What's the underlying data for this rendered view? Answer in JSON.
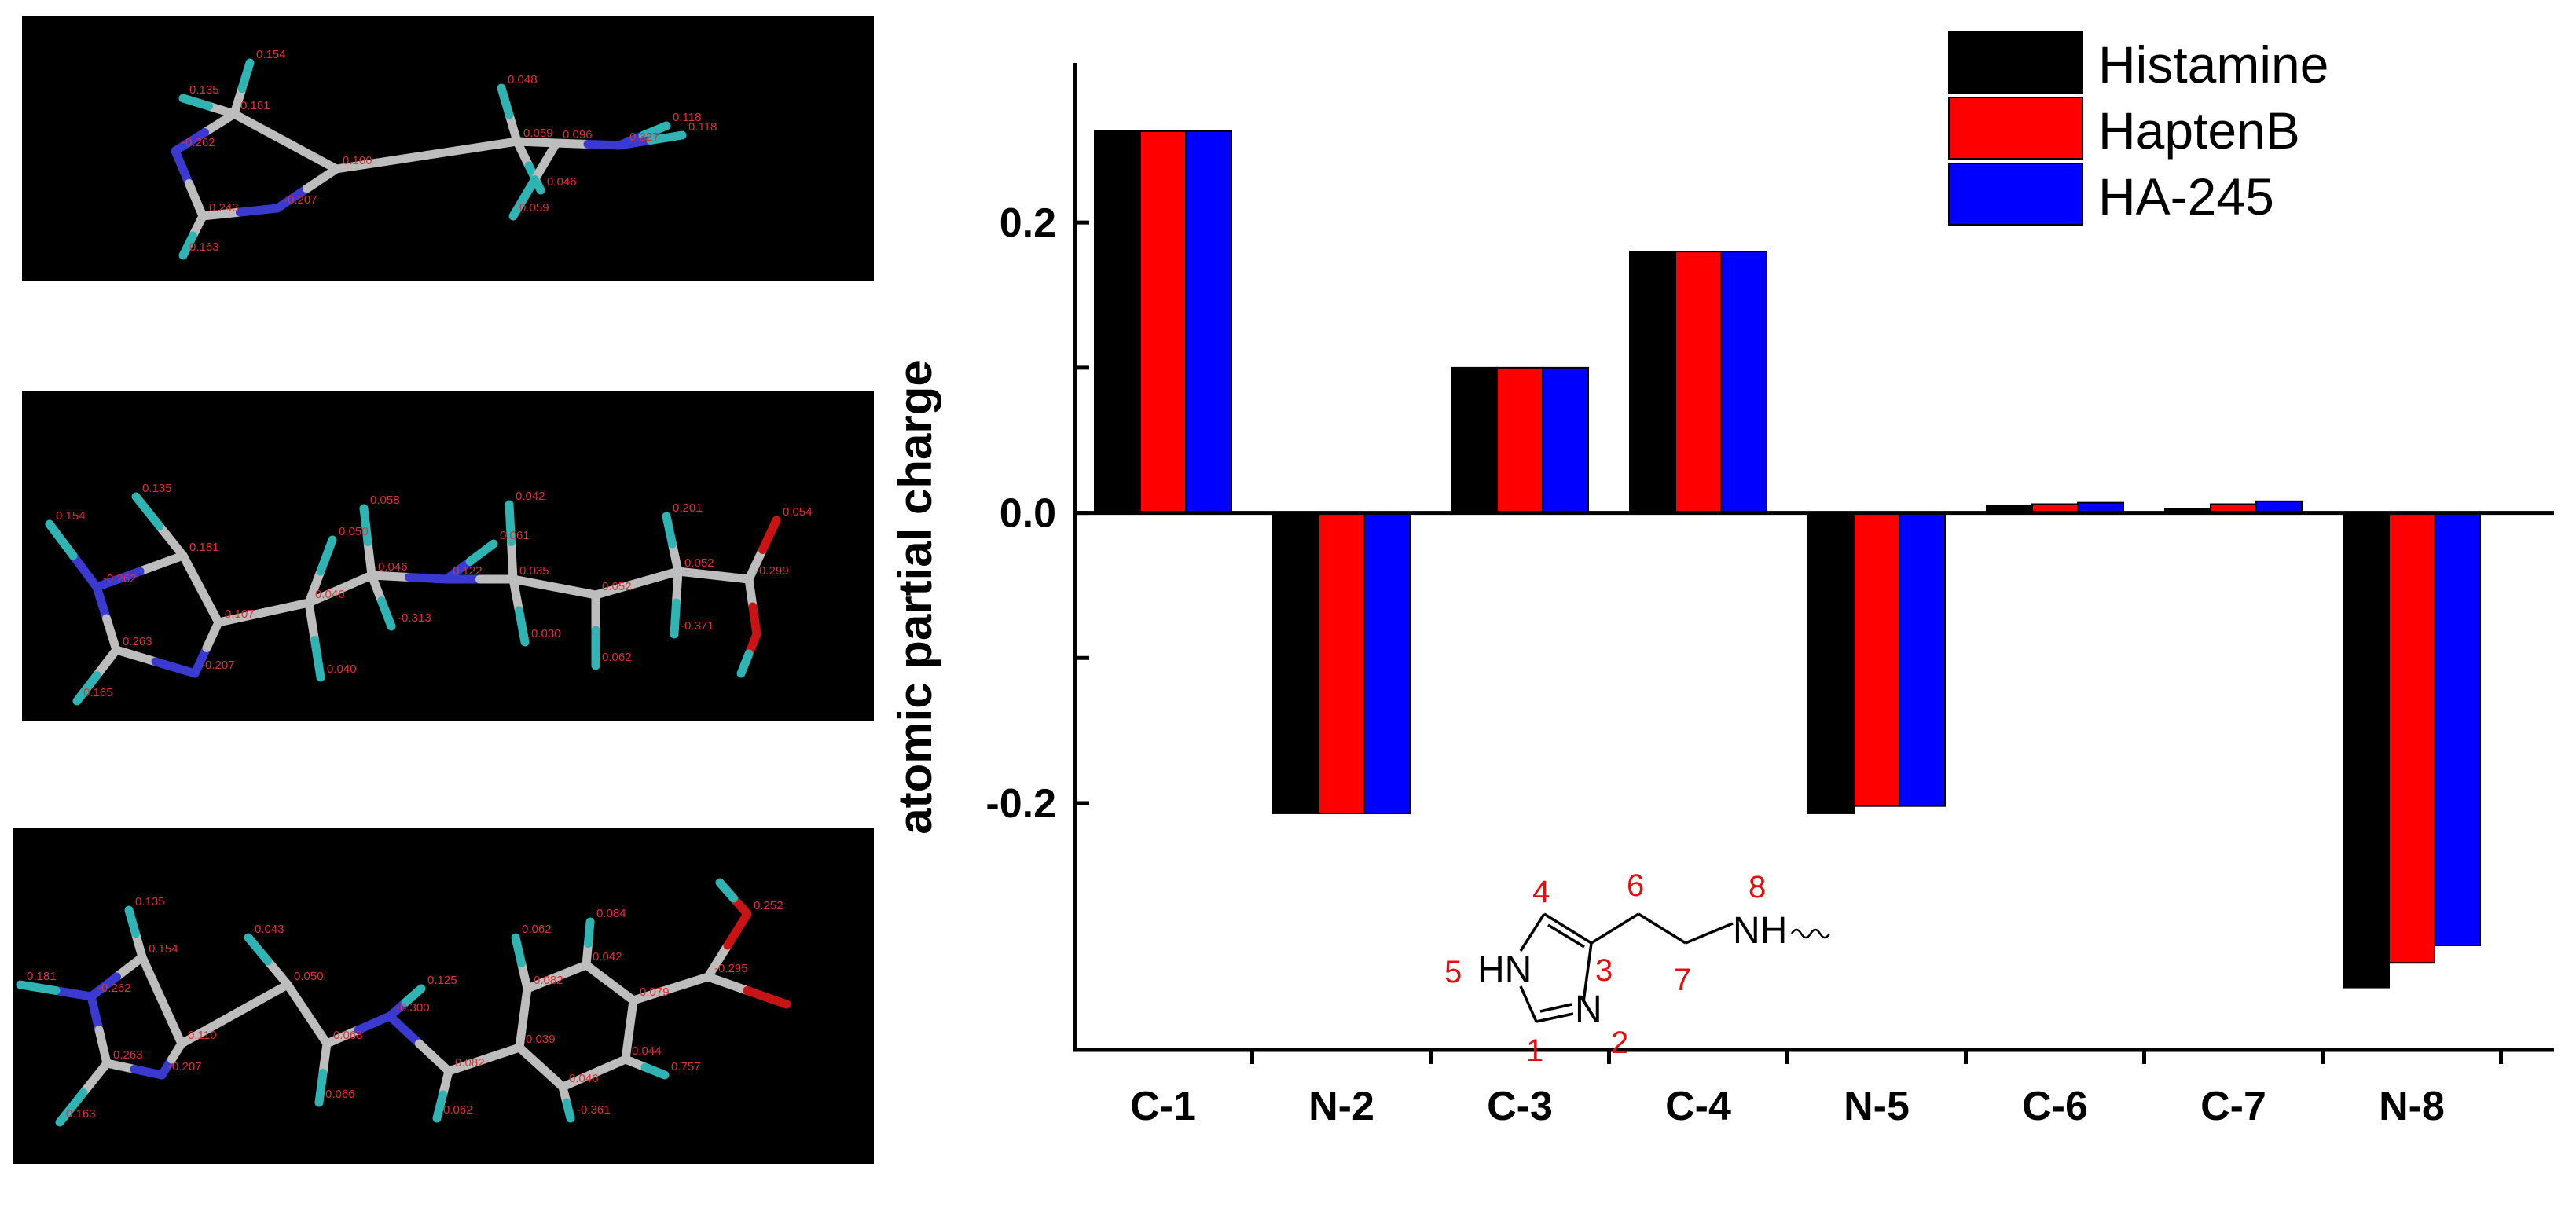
{
  "colors": {
    "histamine": "#000000",
    "haptenB": "#ff0000",
    "ha245": "#0000ff",
    "panel_bg": "#000000",
    "bond": "#bdbdbd",
    "nitrogen": "#3a3ad0",
    "hydrogen": "#2fb3b3",
    "oxygen": "#c81414",
    "atom_label": "#e03030"
  },
  "molecule_panels": [
    {
      "name": "histamine-model",
      "atom_labels": [
        "0.135",
        "0.154",
        "0.181",
        "-0.262",
        "0.100",
        "0.243",
        "-0.207",
        "0.163",
        "0.048",
        "0.059",
        "0.096",
        "0.046",
        "0.059",
        "-0.327",
        "0.118",
        "0.118"
      ]
    },
    {
      "name": "hapten-b-model",
      "atom_labels": [
        "0.135",
        "0.154",
        "0.181",
        "-0.262",
        "0.107",
        "0.263",
        "-0.207",
        "0.165",
        "0.046",
        "0.050",
        "0.040",
        "0.046",
        "0.058",
        "-0.313",
        "0.122",
        "0.061",
        "0.035",
        "0.042",
        "0.030",
        "0.052",
        "0.062",
        "0.052",
        "0.201",
        "-0.371",
        "-0.299",
        "0.054"
      ]
    },
    {
      "name": "ha-245-model",
      "atom_labels": [
        "0.135",
        "0.181",
        "0.154",
        "-0.262",
        "0.110",
        "0.263",
        "-0.207",
        "0.163",
        "0.043",
        "0.050",
        "0.068",
        "0.066",
        "-0.300",
        "0.125",
        "0.082",
        "0.062",
        "0.039",
        "0.082",
        "0.042",
        "0.079",
        "0.044",
        "0.046",
        "0.062",
        "0.084",
        "0.757",
        "-0.361",
        "-0.295",
        "0.252"
      ]
    }
  ],
  "structure": {
    "numbers": [
      "1",
      "2",
      "3",
      "4",
      "5",
      "6",
      "7",
      "8"
    ],
    "hn_label": "HN",
    "n_label": "N",
    "nh_label": "NH"
  },
  "chart_data": {
    "type": "bar",
    "categories": [
      "C-1",
      "N-2",
      "C-3",
      "C-4",
      "N-5",
      "C-6",
      "C-7",
      "N-8"
    ],
    "series": [
      {
        "name": "Histamine",
        "values": [
          0.263,
          -0.207,
          0.1,
          0.18,
          -0.207,
          0.005,
          0.003,
          -0.327
        ]
      },
      {
        "name": "HaptenB",
        "values": [
          0.263,
          -0.207,
          0.1,
          0.18,
          -0.202,
          0.006,
          0.006,
          -0.31
        ]
      },
      {
        "name": "HA-245",
        "values": [
          0.263,
          -0.207,
          0.1,
          0.18,
          -0.202,
          0.007,
          0.008,
          -0.298
        ]
      }
    ],
    "ylabel": "atomic partial charge",
    "xlabel": "",
    "ylim": [
      -0.37,
      0.31
    ],
    "yticks": [
      -0.2,
      -0.1,
      0.0,
      0.1,
      0.2
    ],
    "ytick_labels": [
      "-0.2",
      "",
      "0.0",
      "",
      "0.2"
    ],
    "legend": {
      "placement": "top-right",
      "entries": [
        "Histamine",
        "HaptenB",
        "HA-245"
      ]
    },
    "grid": false
  }
}
